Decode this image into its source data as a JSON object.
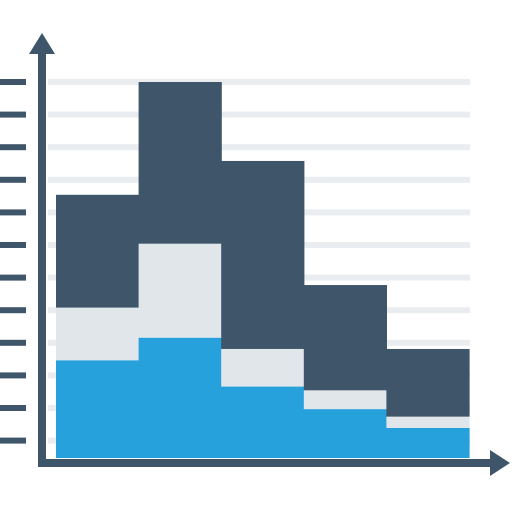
{
  "icon": {
    "name": "stacked-bar-chart-icon",
    "colors": {
      "axis": "#3e556a",
      "gridline": "#e9edf0",
      "bottom_segment": "#27a1dc",
      "middle_segment": "#e1e6ea",
      "top_segment": "#3e556a"
    }
  },
  "chart_data": {
    "type": "bar",
    "stacked": true,
    "categories": [
      "",
      "",
      "",
      "",
      ""
    ],
    "ylim": [
      0,
      100
    ],
    "grid": true,
    "series": [
      {
        "values": [
          26,
          32,
          19,
          13,
          8
        ]
      },
      {
        "values": [
          14,
          25,
          10,
          5,
          3
        ]
      },
      {
        "values": [
          30,
          43,
          50,
          28,
          18
        ]
      }
    ]
  }
}
